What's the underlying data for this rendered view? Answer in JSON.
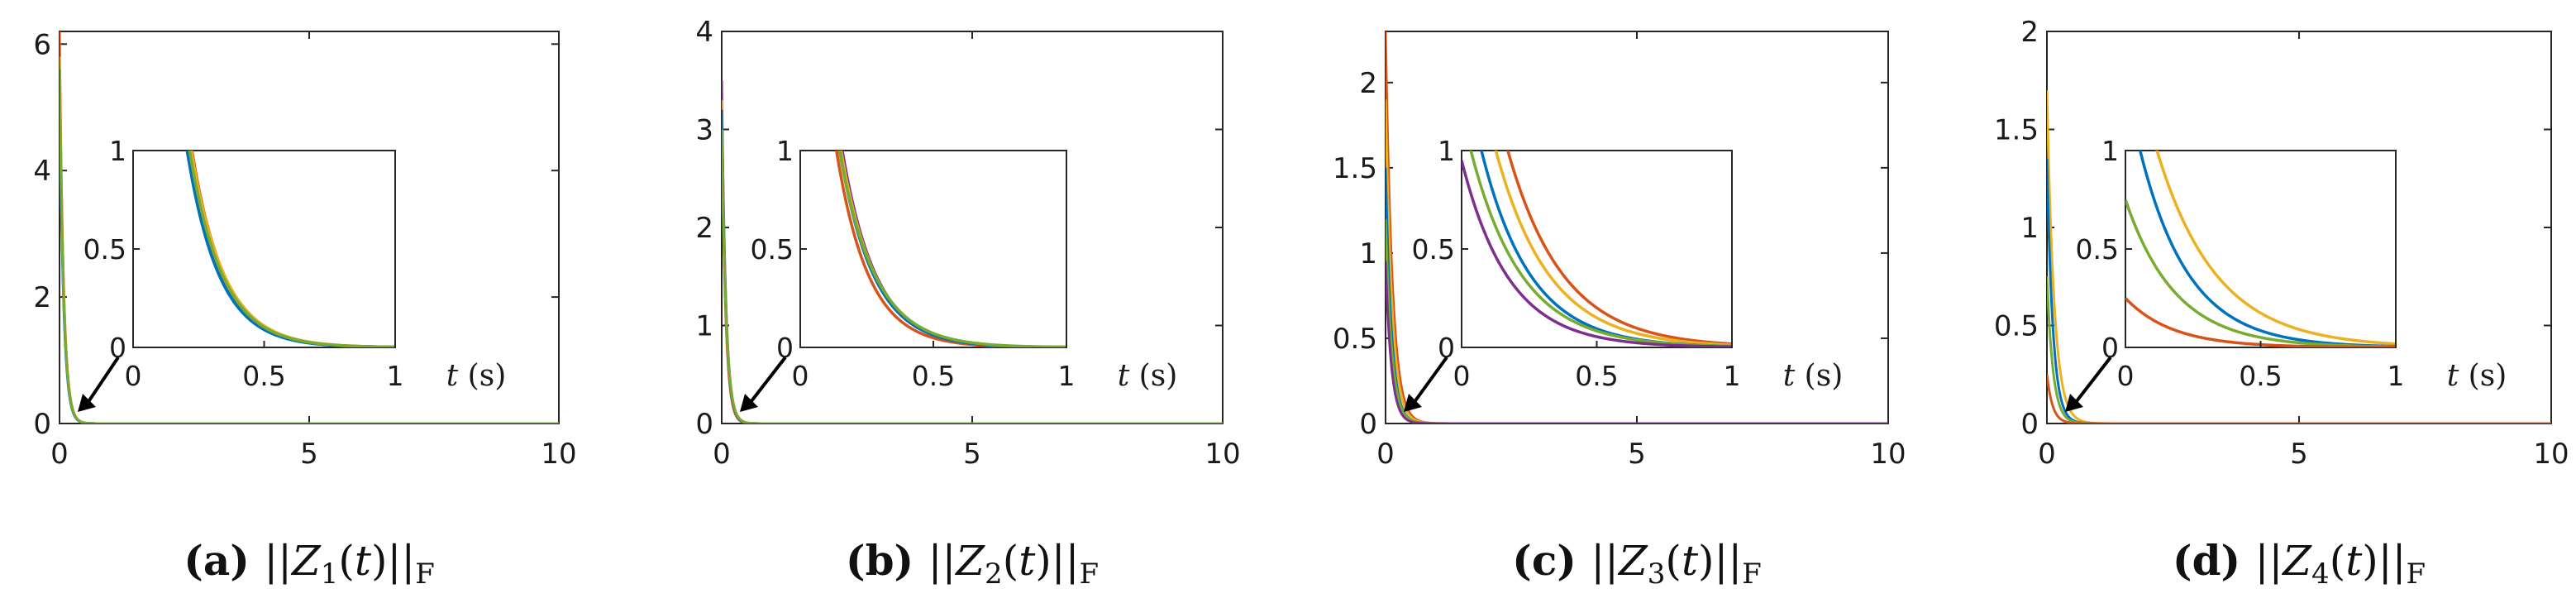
{
  "colors": {
    "blue": "#0072BD",
    "orange": "#D95319",
    "yellow": "#EDB120",
    "purple": "#7E2F8E",
    "green": "#77AC30",
    "axis": "#262626"
  },
  "inset_xlabel": {
    "var": "t",
    "unit": "(s)"
  },
  "chart_data": [
    {
      "type": "line",
      "caption": {
        "tag": "(a)",
        "expr": "||Z1(t)||F"
      },
      "xlim": [
        0,
        10
      ],
      "ylim": [
        0,
        6.2
      ],
      "xticks": [
        "0",
        "5",
        "10"
      ],
      "yticks": [
        {
          "v": 0,
          "label": "0"
        },
        {
          "v": 2,
          "label": "2"
        },
        {
          "v": 4,
          "label": "4"
        },
        {
          "v": 6,
          "label": "6"
        }
      ],
      "inset": {
        "xlim": [
          0,
          1
        ],
        "ylim": [
          0,
          1
        ],
        "xticks": [
          "0",
          "0.5",
          "1"
        ],
        "yticks": [
          "0",
          "0.5",
          "1"
        ]
      },
      "series": [
        {
          "color": "orange",
          "y0": 6.2,
          "k": 12.5
        },
        {
          "color": "yellow",
          "y0": 5.8,
          "k": 12.2
        },
        {
          "color": "purple",
          "y0": 5.5,
          "k": 12.4
        },
        {
          "color": "blue",
          "y0": 5.4,
          "k": 12.6
        },
        {
          "color": "green",
          "y0": 5.6,
          "k": 12.3
        }
      ]
    },
    {
      "type": "line",
      "caption": {
        "tag": "(b)",
        "expr": "||Z2(t)||F"
      },
      "xlim": [
        0,
        10
      ],
      "ylim": [
        0,
        4
      ],
      "xticks": [
        "0",
        "5",
        "10"
      ],
      "yticks": [
        {
          "v": 0,
          "label": "0"
        },
        {
          "v": 1,
          "label": "1"
        },
        {
          "v": 2,
          "label": "2"
        },
        {
          "v": 3,
          "label": "3"
        },
        {
          "v": 4,
          "label": "4"
        }
      ],
      "inset": {
        "xlim": [
          0,
          1
        ],
        "ylim": [
          0,
          1
        ],
        "xticks": [
          "0",
          "0.5",
          "1"
        ],
        "yticks": [
          "0",
          "0.5",
          "1"
        ]
      },
      "series": [
        {
          "color": "purple",
          "y0": 3.5,
          "k": 12.2
        },
        {
          "color": "orange",
          "y0": 3.1,
          "k": 12.8
        },
        {
          "color": "yellow",
          "y0": 3.3,
          "k": 12.0
        },
        {
          "color": "blue",
          "y0": 3.2,
          "k": 12.1
        },
        {
          "color": "green",
          "y0": 3.0,
          "k": 11.5
        }
      ]
    },
    {
      "type": "line",
      "caption": {
        "tag": "(c)",
        "expr": "||Z3(t)||F"
      },
      "xlim": [
        0,
        10
      ],
      "ylim": [
        0,
        2.3
      ],
      "xticks": [
        "0",
        "5",
        "10"
      ],
      "yticks": [
        {
          "v": 0,
          "label": "0"
        },
        {
          "v": 0.5,
          "label": "0.5"
        },
        {
          "v": 1,
          "label": "1"
        },
        {
          "v": 1.5,
          "label": "1.5"
        },
        {
          "v": 2,
          "label": "2"
        }
      ],
      "inset": {
        "xlim": [
          0,
          1
        ],
        "ylim": [
          0,
          1
        ],
        "xticks": [
          "0",
          "0.5",
          "1"
        ],
        "yticks": [
          "0",
          "0.5",
          "1"
        ]
      },
      "series": [
        {
          "color": "orange",
          "y0": 2.3,
          "k": 7.5
        },
        {
          "color": "yellow",
          "y0": 1.9,
          "k": 7.8
        },
        {
          "color": "blue",
          "y0": 1.5,
          "k": 8.5
        },
        {
          "color": "green",
          "y0": 1.2,
          "k": 8.2
        },
        {
          "color": "purple",
          "y0": 0.95,
          "k": 8.8
        }
      ]
    },
    {
      "type": "line",
      "caption": {
        "tag": "(d)",
        "expr": "||Z4(t)||F"
      },
      "xlim": [
        0,
        10
      ],
      "ylim": [
        0,
        2
      ],
      "xticks": [
        "0",
        "5",
        "10"
      ],
      "yticks": [
        {
          "v": 0,
          "label": "0"
        },
        {
          "v": 0.5,
          "label": "0.5"
        },
        {
          "v": 1,
          "label": "1"
        },
        {
          "v": 1.5,
          "label": "1.5"
        },
        {
          "v": 2,
          "label": "2"
        }
      ],
      "inset": {
        "xlim": [
          0,
          1
        ],
        "ylim": [
          0,
          1
        ],
        "xticks": [
          "0",
          "0.5",
          "1"
        ],
        "yticks": [
          "0",
          "0.5",
          "1"
        ]
      },
      "series": [
        {
          "color": "yellow",
          "y0": 1.7,
          "k": 7.0
        },
        {
          "color": "blue",
          "y0": 1.35,
          "k": 8.5
        },
        {
          "color": "green",
          "y0": 0.75,
          "k": 8.3
        },
        {
          "color": "orange",
          "y0": 0.25,
          "k": 8.8
        }
      ]
    }
  ]
}
